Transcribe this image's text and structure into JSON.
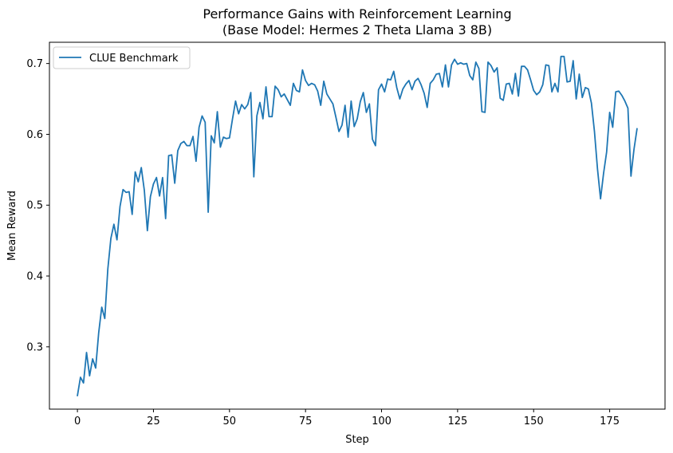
{
  "chart_data": {
    "type": "line",
    "title": "Performance Gains with Reinforcement Learning",
    "subtitle": "(Base Model: Hermes 2 Theta Llama 3 8B)",
    "xlabel": "Step",
    "ylabel": "Mean Reward",
    "xlim": [
      -9.2,
      193.2
    ],
    "ylim": [
      0.212,
      0.73
    ],
    "x_ticks": [
      0,
      25,
      50,
      75,
      100,
      125,
      150,
      175
    ],
    "y_ticks": [
      0.3,
      0.4,
      0.5,
      0.6,
      0.7
    ],
    "grid": false,
    "legend_position": "top-left",
    "series": [
      {
        "name": "CLUE Benchmark",
        "color": "#1f77b4",
        "x_start": 0,
        "x_step": 1,
        "values": [
          0.231,
          0.257,
          0.249,
          0.292,
          0.259,
          0.283,
          0.27,
          0.32,
          0.356,
          0.34,
          0.41,
          0.453,
          0.473,
          0.451,
          0.498,
          0.522,
          0.518,
          0.519,
          0.487,
          0.547,
          0.533,
          0.553,
          0.521,
          0.464,
          0.512,
          0.53,
          0.539,
          0.513,
          0.539,
          0.481,
          0.57,
          0.571,
          0.531,
          0.577,
          0.587,
          0.59,
          0.584,
          0.584,
          0.597,
          0.562,
          0.61,
          0.626,
          0.617,
          0.49,
          0.598,
          0.588,
          0.632,
          0.582,
          0.596,
          0.594,
          0.595,
          0.622,
          0.647,
          0.629,
          0.642,
          0.636,
          0.642,
          0.659,
          0.54,
          0.626,
          0.645,
          0.622,
          0.667,
          0.625,
          0.625,
          0.668,
          0.663,
          0.653,
          0.657,
          0.649,
          0.641,
          0.672,
          0.662,
          0.66,
          0.691,
          0.676,
          0.669,
          0.672,
          0.67,
          0.661,
          0.641,
          0.675,
          0.657,
          0.65,
          0.643,
          0.624,
          0.604,
          0.613,
          0.641,
          0.596,
          0.647,
          0.611,
          0.622,
          0.646,
          0.659,
          0.631,
          0.643,
          0.593,
          0.584,
          0.663,
          0.671,
          0.66,
          0.678,
          0.677,
          0.689,
          0.666,
          0.65,
          0.664,
          0.671,
          0.676,
          0.663,
          0.675,
          0.679,
          0.67,
          0.658,
          0.638,
          0.672,
          0.677,
          0.685,
          0.686,
          0.667,
          0.698,
          0.667,
          0.698,
          0.706,
          0.699,
          0.701,
          0.699,
          0.7,
          0.683,
          0.677,
          0.702,
          0.693,
          0.632,
          0.631,
          0.702,
          0.697,
          0.688,
          0.694,
          0.651,
          0.648,
          0.671,
          0.672,
          0.657,
          0.686,
          0.654,
          0.696,
          0.696,
          0.691,
          0.677,
          0.662,
          0.656,
          0.66,
          0.67,
          0.698,
          0.697,
          0.66,
          0.672,
          0.66,
          0.71,
          0.71,
          0.674,
          0.675,
          0.704,
          0.65,
          0.685,
          0.652,
          0.666,
          0.664,
          0.644,
          0.604,
          0.551,
          0.509,
          0.545,
          0.575,
          0.631,
          0.61,
          0.66,
          0.661,
          0.655,
          0.647,
          0.637,
          0.541,
          0.579,
          0.608
        ]
      }
    ]
  }
}
